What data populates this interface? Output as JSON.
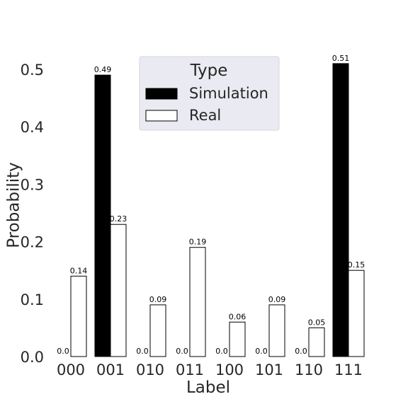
{
  "chart_data": {
    "type": "bar",
    "categories": [
      "000",
      "001",
      "010",
      "011",
      "100",
      "101",
      "110",
      "111"
    ],
    "series": [
      {
        "name": "Simulation",
        "color": "#000000",
        "values": [
          0.0,
          0.49,
          0.0,
          0.0,
          0.0,
          0.0,
          0.0,
          0.51
        ],
        "labels": [
          "0.0",
          "0.49",
          "0.0",
          "0.0",
          "0.0",
          "0.0",
          "0.0",
          "0.51"
        ]
      },
      {
        "name": "Real",
        "color": "#ffffff",
        "values": [
          0.14,
          0.23,
          0.09,
          0.19,
          0.06,
          0.09,
          0.05,
          0.15
        ],
        "labels": [
          "0.14",
          "0.23",
          "0.09",
          "0.19",
          "0.06",
          "0.09",
          "0.05",
          "0.15"
        ]
      }
    ],
    "xlabel": "Label",
    "ylabel": "Probability",
    "ylim": [
      0,
      0.5
    ],
    "yticks": [
      "0.0",
      "0.1",
      "0.2",
      "0.3",
      "0.4",
      "0.5"
    ],
    "grid": false,
    "legend": {
      "title": "Type",
      "placement": "top-center",
      "background": "#eaeaf2"
    }
  }
}
